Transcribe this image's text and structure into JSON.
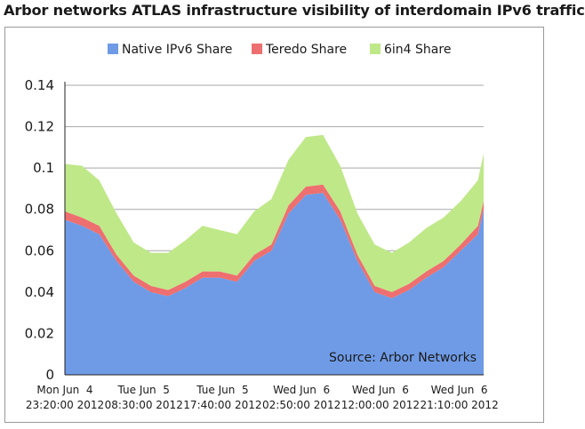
{
  "chart_data": {
    "type": "area",
    "stacked": true,
    "title": "Arbor networks ATLAS infrastructure visibility of interdomain IPv6 traffic",
    "xlabel": "",
    "ylabel": "",
    "ylim": [
      0,
      0.14
    ],
    "yticks": [
      "0",
      "0.02",
      "0.04",
      "0.06",
      "0.08",
      "0.1",
      "0.12",
      "0.14"
    ],
    "grid": true,
    "legend_position": "top",
    "annotation": "Source: Arbor Networks",
    "xtick_labels": [
      {
        "line1": "Mon Jun  4",
        "line2": "23:20:00 2012"
      },
      {
        "line1": "Tue Jun  5",
        "line2": "08:30:00 2012"
      },
      {
        "line1": "Tue Jun  5",
        "line2": "17:40:00 2012"
      },
      {
        "line1": "Wed Jun  6",
        "line2": "02:50:00 2012"
      },
      {
        "line1": "Wed Jun  6",
        "line2": "12:00:00 2012"
      },
      {
        "line1": "Wed Jun  6",
        "line2": "21:10:00 2012"
      }
    ],
    "x_start": "2012-06-04 23:20",
    "x_end": "2012-06-07 00:00",
    "x": [
      "2012-06-04 23:20",
      "2012-06-05 01:20",
      "2012-06-05 03:20",
      "2012-06-05 05:20",
      "2012-06-05 07:20",
      "2012-06-05 09:20",
      "2012-06-05 11:20",
      "2012-06-05 13:20",
      "2012-06-05 15:20",
      "2012-06-05 17:20",
      "2012-06-05 19:20",
      "2012-06-05 21:20",
      "2012-06-05 23:20",
      "2012-06-06 01:20",
      "2012-06-06 03:20",
      "2012-06-06 05:20",
      "2012-06-06 07:20",
      "2012-06-06 09:20",
      "2012-06-06 11:20",
      "2012-06-06 13:20",
      "2012-06-06 15:20",
      "2012-06-06 17:20",
      "2012-06-06 19:20",
      "2012-06-06 21:20",
      "2012-06-06 23:20",
      "2012-06-07 00:00"
    ],
    "series": [
      {
        "name": "Native IPv6 Share",
        "color": "#6f9be6",
        "values": [
          0.075,
          0.072,
          0.068,
          0.055,
          0.045,
          0.04,
          0.038,
          0.042,
          0.047,
          0.047,
          0.045,
          0.055,
          0.06,
          0.078,
          0.087,
          0.088,
          0.075,
          0.055,
          0.04,
          0.037,
          0.041,
          0.047,
          0.052,
          0.06,
          0.068,
          0.08
        ]
      },
      {
        "name": "Teredo Share",
        "color": "#ee6f6f",
        "values": [
          0.004,
          0.004,
          0.004,
          0.003,
          0.003,
          0.003,
          0.003,
          0.003,
          0.003,
          0.003,
          0.003,
          0.003,
          0.003,
          0.004,
          0.004,
          0.004,
          0.004,
          0.003,
          0.003,
          0.003,
          0.003,
          0.003,
          0.003,
          0.003,
          0.004,
          0.004
        ]
      },
      {
        "name": "6in4 Share",
        "color": "#bfe888",
        "values": [
          0.023,
          0.025,
          0.022,
          0.02,
          0.016,
          0.016,
          0.018,
          0.02,
          0.022,
          0.02,
          0.02,
          0.021,
          0.022,
          0.022,
          0.024,
          0.024,
          0.022,
          0.02,
          0.02,
          0.019,
          0.02,
          0.021,
          0.021,
          0.021,
          0.022,
          0.023
        ]
      }
    ]
  }
}
